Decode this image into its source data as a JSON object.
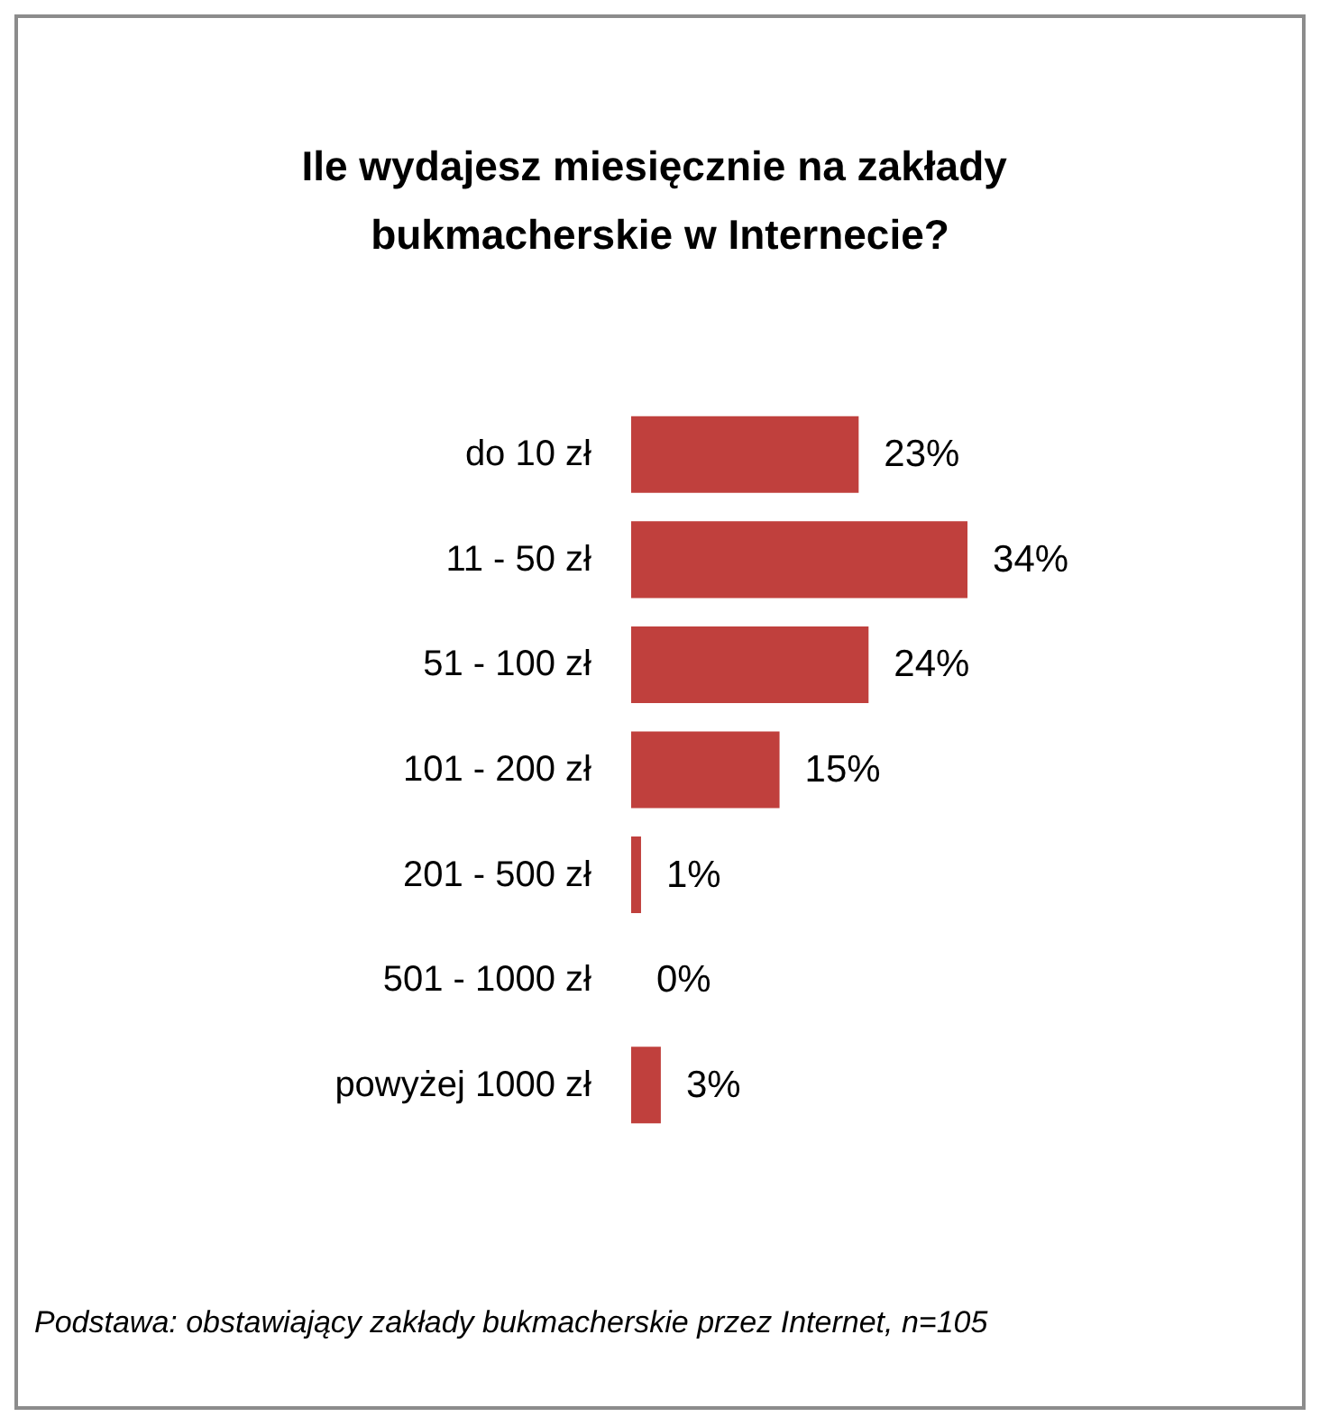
{
  "chart_data": {
    "type": "bar",
    "orientation": "horizontal",
    "title": "Ile wydajesz miesięcznie na zakłady bukmacherskie w Internecie?",
    "categories": [
      "do 10 zł",
      "11 - 50 zł",
      "51 - 100 zł",
      "101 - 200 zł",
      "201 - 500 zł",
      "501 - 1000 zł",
      "powyżej 1000 zł"
    ],
    "values": [
      23,
      34,
      24,
      15,
      1,
      0,
      3
    ],
    "value_labels": [
      "23%",
      "34%",
      "24%",
      "15%",
      "1%",
      "0%",
      "3%"
    ],
    "color": "#c0403d",
    "annotations": [
      "Podstawa: obstawiający zakłady bukmacherskie przez Internet, n=105"
    ]
  }
}
